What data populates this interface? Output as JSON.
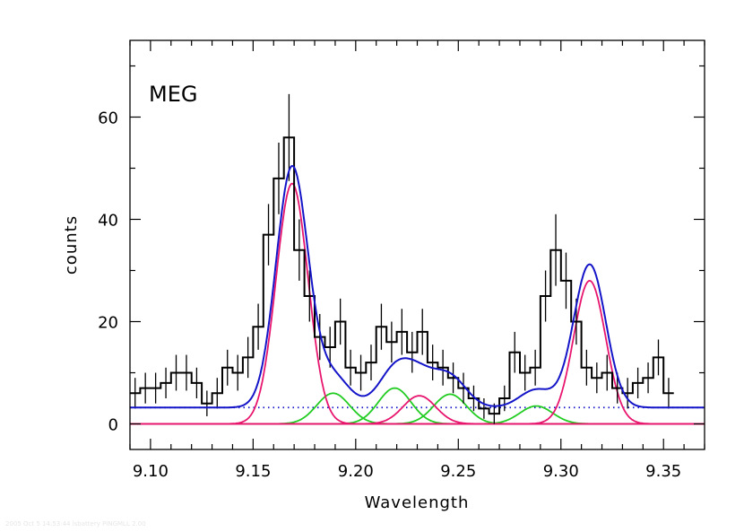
{
  "chart_data": {
    "type": "line",
    "panel_label": "MEG",
    "xlabel": "Wavelength",
    "ylabel": "counts",
    "xlim": [
      9.09,
      9.37
    ],
    "ylim": [
      -5,
      75
    ],
    "xticks": [
      9.1,
      9.15,
      9.2,
      9.25,
      9.3,
      9.35
    ],
    "xtick_labels": [
      "9.10",
      "9.15",
      "9.20",
      "9.25",
      "9.30",
      "9.35"
    ],
    "yticks": [
      0,
      20,
      40,
      60
    ],
    "ytick_labels": [
      "0",
      "20",
      "40",
      "60"
    ],
    "continuum_level": 3.2,
    "histogram": {
      "name": "data",
      "color": "#000000",
      "bin_width": 0.005,
      "bin_start": 9.09,
      "counts": [
        6,
        7,
        7,
        8,
        10,
        10,
        8,
        4,
        6,
        11,
        10,
        13,
        19,
        37,
        48,
        56,
        34,
        25,
        17,
        15,
        20,
        11,
        10,
        12,
        19,
        16,
        18,
        14,
        18,
        12,
        11,
        9,
        7,
        5,
        3,
        2,
        5,
        14,
        10,
        11,
        25,
        34,
        28,
        20,
        11,
        9,
        10,
        7,
        6,
        8,
        9,
        13,
        6
      ],
      "errors": [
        3,
        3,
        3,
        3,
        3.5,
        3.5,
        3,
        2.5,
        3,
        3.5,
        3.5,
        4,
        4.5,
        6,
        7,
        8.5,
        6,
        5,
        4.5,
        4,
        4.5,
        3.5,
        3.5,
        3.5,
        4.5,
        4,
        4.5,
        4,
        4.5,
        3.5,
        3.5,
        3,
        3,
        2.5,
        2,
        2,
        2.5,
        4,
        3.5,
        3.5,
        5,
        7,
        5.5,
        4.5,
        3.5,
        3,
        3.5,
        3,
        3,
        3,
        3,
        3.5,
        3
      ]
    },
    "series": [
      {
        "name": "total model",
        "color": "#1414c8",
        "components": "all"
      },
      {
        "name": "line 9.169",
        "color": "#e8156e",
        "center": 9.169,
        "amplitude": 47,
        "sigma": 0.0078
      },
      {
        "name": "line 9.231",
        "color": "#e8156e",
        "center": 9.231,
        "amplitude": 5.5,
        "sigma": 0.008
      },
      {
        "name": "line 9.314",
        "color": "#e8156e",
        "center": 9.314,
        "amplitude": 28,
        "sigma": 0.0078
      },
      {
        "name": "line 9.189",
        "color": "#22cc22",
        "center": 9.189,
        "amplitude": 6.0,
        "sigma": 0.008
      },
      {
        "name": "line 9.219",
        "color": "#22cc22",
        "center": 9.219,
        "amplitude": 7.0,
        "sigma": 0.008
      },
      {
        "name": "line 9.246",
        "color": "#22cc22",
        "center": 9.246,
        "amplitude": 5.8,
        "sigma": 0.008
      },
      {
        "name": "line 9.288",
        "color": "#22cc22",
        "center": 9.288,
        "amplitude": 3.5,
        "sigma": 0.008
      }
    ],
    "continuum": {
      "name": "continuum",
      "color": "#1414c8",
      "style": "dotted"
    }
  },
  "footer_text": "2005 Oct 5 14:53:44 lsbattery PINGMLL 2.00"
}
